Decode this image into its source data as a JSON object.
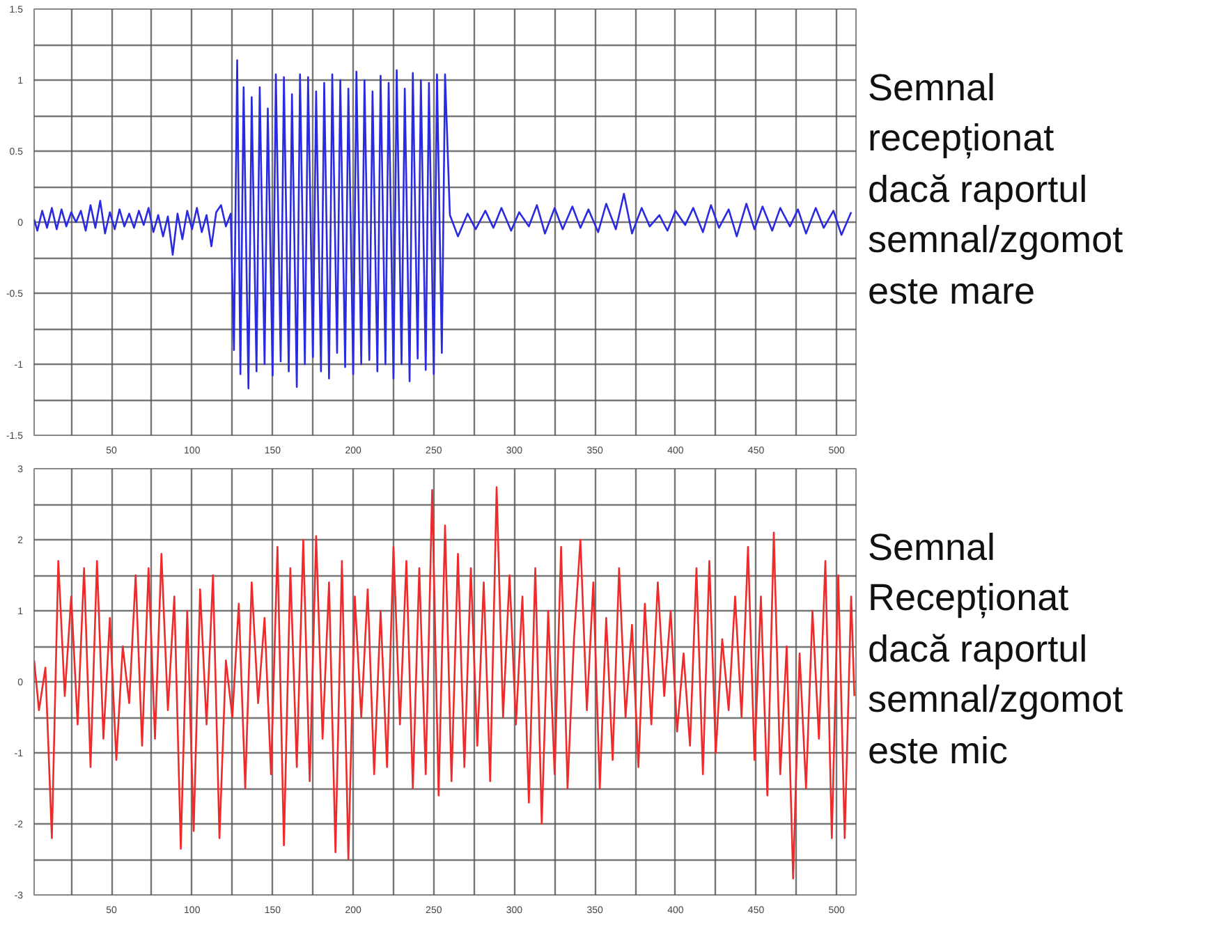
{
  "chart_data": [
    {
      "type": "line",
      "xlim": [
        2,
        512
      ],
      "ylim": [
        -1.5,
        1.5
      ],
      "xticks": [
        {
          "value": 25,
          "label": null
        },
        50,
        {
          "value": 75,
          "label": null
        },
        100,
        {
          "value": 125,
          "label": null
        },
        150,
        {
          "value": 175,
          "label": null
        },
        200,
        {
          "value": 225,
          "label": null
        },
        250,
        {
          "value": 275,
          "label": null
        },
        300,
        {
          "value": 325,
          "label": null
        },
        350,
        {
          "value": 375,
          "label": null
        },
        400,
        {
          "value": 425,
          "label": null
        },
        450,
        {
          "value": 475,
          "label": null
        },
        500
      ],
      "yticks": [
        -1.5,
        {
          "value": -1.25,
          "label": null
        },
        -1,
        {
          "value": -0.75,
          "label": null
        },
        -0.5,
        {
          "value": -0.25,
          "label": null
        },
        0,
        {
          "value": 0.25,
          "label": null
        },
        0.5,
        {
          "value": 0.75,
          "label": null
        },
        1,
        {
          "value": 1.25,
          "label": null
        },
        1.5
      ],
      "grid": true,
      "annotations": [
        "Semnal\nrecepționat\ndacă raportul\nsemnal/zgomot\neste mare"
      ],
      "series": [
        {
          "color": "#2a2ae0",
          "x": [
            2,
            4,
            7,
            10,
            13,
            16,
            19,
            22,
            25,
            28,
            31,
            34,
            37,
            40,
            43,
            46,
            49,
            52,
            55,
            58,
            61,
            64,
            67,
            70,
            73,
            76,
            79,
            82,
            85,
            88,
            91,
            94,
            97,
            100,
            103,
            106,
            109,
            112,
            115,
            118,
            121,
            124,
            126,
            128,
            130,
            132,
            135,
            137,
            140,
            142,
            145,
            147,
            150,
            152,
            155,
            157,
            160,
            162,
            165,
            167,
            170,
            172,
            175,
            177,
            180,
            182,
            185,
            187,
            190,
            192,
            195,
            197,
            200,
            202,
            205,
            207,
            210,
            212,
            215,
            217,
            220,
            222,
            225,
            227,
            230,
            232,
            235,
            237,
            240,
            242,
            245,
            247,
            250,
            252,
            255,
            257,
            260,
            265,
            271,
            276,
            282,
            287,
            292,
            298,
            303,
            309,
            314,
            319,
            325,
            330,
            336,
            341,
            346,
            352,
            357,
            363,
            368,
            373,
            379,
            384,
            390,
            395,
            400,
            406,
            411,
            417,
            422,
            427,
            433,
            438,
            444,
            449,
            454,
            460,
            465,
            471,
            476,
            481,
            487,
            492,
            498,
            503,
            509
          ],
          "values": [
            0.02,
            -0.06,
            0.08,
            -0.04,
            0.1,
            -0.05,
            0.09,
            -0.03,
            0.07,
            0.0,
            0.08,
            -0.06,
            0.12,
            -0.04,
            0.15,
            -0.08,
            0.07,
            -0.05,
            0.09,
            -0.03,
            0.06,
            -0.04,
            0.08,
            -0.02,
            0.1,
            -0.07,
            0.05,
            -0.1,
            0.04,
            -0.23,
            0.06,
            -0.12,
            0.08,
            -0.05,
            0.1,
            -0.07,
            0.05,
            -0.17,
            0.07,
            0.12,
            -0.03,
            0.06,
            -0.9,
            1.14,
            -1.07,
            0.95,
            -1.17,
            0.88,
            -1.05,
            0.95,
            -1.0,
            0.8,
            -1.08,
            1.04,
            -0.98,
            1.02,
            -1.05,
            0.9,
            -1.16,
            1.04,
            -1.0,
            1.02,
            -0.95,
            0.92,
            -1.05,
            0.98,
            -1.1,
            1.04,
            -0.92,
            1.0,
            -1.02,
            0.94,
            -1.07,
            1.06,
            -1.0,
            1.0,
            -0.97,
            0.92,
            -1.05,
            1.03,
            -1.0,
            0.98,
            -1.1,
            1.07,
            -1.0,
            0.94,
            -1.12,
            1.05,
            -0.96,
            1.0,
            -1.04,
            0.98,
            -1.07,
            1.04,
            -0.92,
            1.04,
            0.05,
            -0.1,
            0.06,
            -0.05,
            0.08,
            -0.04,
            0.1,
            -0.06,
            0.07,
            -0.03,
            0.12,
            -0.08,
            0.1,
            -0.05,
            0.11,
            -0.04,
            0.09,
            -0.07,
            0.13,
            -0.05,
            0.2,
            -0.08,
            0.1,
            -0.03,
            0.05,
            -0.06,
            0.08,
            -0.02,
            0.1,
            -0.07,
            0.12,
            -0.04,
            0.09,
            -0.1,
            0.13,
            -0.05,
            0.11,
            -0.06,
            0.1,
            -0.03,
            0.09,
            -0.08,
            0.1,
            -0.04,
            0.08,
            -0.09,
            0.07
          ]
        }
      ]
    },
    {
      "type": "line",
      "xlim": [
        2,
        512
      ],
      "ylim": [
        -3,
        3
      ],
      "xticks": [
        {
          "value": 25,
          "label": null
        },
        50,
        {
          "value": 75,
          "label": null
        },
        100,
        {
          "value": 125,
          "label": null
        },
        150,
        {
          "value": 175,
          "label": null
        },
        200,
        {
          "value": 225,
          "label": null
        },
        250,
        {
          "value": 275,
          "label": null
        },
        300,
        {
          "value": 325,
          "label": null
        },
        350,
        {
          "value": 375,
          "label": null
        },
        400,
        {
          "value": 425,
          "label": null
        },
        450,
        {
          "value": 475,
          "label": null
        },
        500
      ],
      "yticks": [
        -3,
        {
          "value": -2.5,
          "label": null
        },
        -2,
        {
          "value": -1.5,
          "label": null
        },
        -1,
        {
          "value": -0.5,
          "label": null
        },
        0,
        {
          "value": 0.5,
          "label": null
        },
        1,
        {
          "value": 1.5,
          "label": null
        },
        2,
        {
          "value": 2.5,
          "label": null
        },
        3
      ],
      "grid": true,
      "annotations": [
        "Semnal\nRecepționat\ndacă raportul\nsemnal/zgomot\neste mic"
      ],
      "series": [
        {
          "color": "#ee2a2a",
          "x": [
            2,
            5,
            9,
            13,
            17,
            21,
            25,
            29,
            33,
            37,
            41,
            45,
            49,
            53,
            57,
            61,
            65,
            69,
            73,
            77,
            81,
            85,
            89,
            93,
            97,
            101,
            105,
            109,
            113,
            117,
            121,
            125,
            129,
            133,
            137,
            141,
            145,
            149,
            153,
            157,
            161,
            165,
            169,
            173,
            177,
            181,
            185,
            189,
            193,
            197,
            201,
            205,
            209,
            213,
            217,
            221,
            225,
            229,
            233,
            237,
            241,
            245,
            249,
            253,
            257,
            261,
            265,
            269,
            273,
            277,
            281,
            285,
            289,
            293,
            297,
            301,
            305,
            309,
            313,
            317,
            321,
            325,
            329,
            333,
            337,
            341,
            345,
            349,
            353,
            357,
            361,
            365,
            369,
            373,
            377,
            381,
            385,
            389,
            393,
            397,
            401,
            405,
            409,
            413,
            417,
            421,
            425,
            429,
            433,
            437,
            441,
            445,
            449,
            453,
            457,
            461,
            465,
            469,
            473,
            477,
            481,
            485,
            489,
            493,
            497,
            501,
            505,
            509,
            511
          ],
          "values": [
            0.3,
            -0.4,
            0.2,
            -2.2,
            1.7,
            -0.2,
            1.2,
            -0.6,
            1.6,
            -1.2,
            1.7,
            -0.8,
            0.9,
            -1.1,
            0.5,
            -0.3,
            1.5,
            -0.9,
            1.6,
            -0.8,
            1.8,
            -0.4,
            1.2,
            -2.35,
            1.0,
            -2.1,
            1.3,
            -0.6,
            1.5,
            -2.2,
            0.3,
            -0.5,
            1.1,
            -1.5,
            1.4,
            -0.3,
            0.9,
            -1.3,
            1.9,
            -2.3,
            1.6,
            -1.2,
            2.0,
            -1.4,
            2.05,
            -0.8,
            1.4,
            -2.4,
            1.7,
            -2.5,
            1.2,
            -0.5,
            1.3,
            -1.3,
            1.0,
            -1.2,
            1.9,
            -0.6,
            1.7,
            -1.5,
            1.6,
            -1.3,
            2.7,
            -1.6,
            2.2,
            -1.4,
            1.8,
            -1.2,
            1.6,
            -0.9,
            1.4,
            -1.4,
            2.74,
            -0.5,
            1.5,
            -0.6,
            1.2,
            -1.7,
            1.6,
            -2.0,
            1.0,
            -1.3,
            1.9,
            -1.5,
            0.6,
            2.0,
            -0.4,
            1.4,
            -1.5,
            0.9,
            -1.1,
            1.6,
            -0.5,
            0.8,
            -1.2,
            1.1,
            -0.6,
            1.4,
            -0.2,
            1.0,
            -0.7,
            0.4,
            -0.9,
            1.6,
            -1.3,
            1.7,
            -1.0,
            0.6,
            -0.4,
            1.2,
            -0.5,
            1.9,
            -1.1,
            1.2,
            -1.6,
            2.1,
            -1.3,
            0.5,
            -2.77,
            0.4,
            -1.5,
            1.0,
            -0.8,
            1.7,
            -2.2,
            1.5,
            -2.2,
            1.2,
            -0.2
          ]
        }
      ]
    }
  ]
}
